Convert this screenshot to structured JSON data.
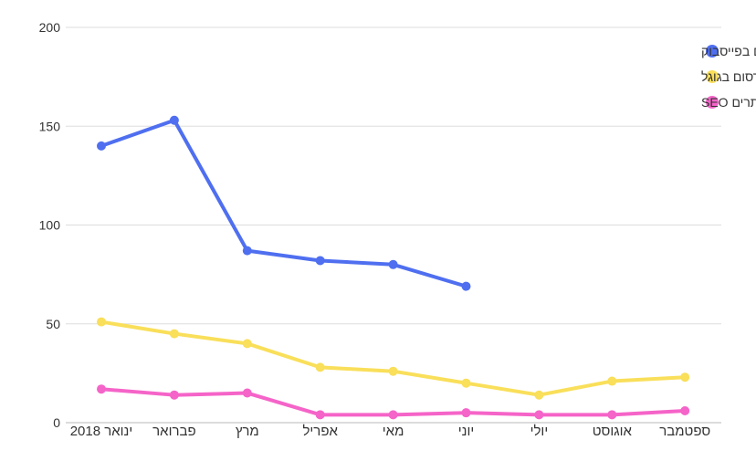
{
  "chart_data": {
    "type": "line",
    "title": "",
    "xlabel": "",
    "ylabel": "",
    "ylim": [
      0,
      200
    ],
    "yticks": [
      0,
      50,
      100,
      150,
      200
    ],
    "categories": [
      "ינואר 2018",
      "פברואר",
      "מרץ",
      "אפריל",
      "מאי",
      "יוני",
      "יולי",
      "אוגוסט",
      "ספטמבר"
    ],
    "series": [
      {
        "name": "פרסום בפייסבוק",
        "color": "#4f6ff0",
        "values": [
          140,
          153,
          87,
          82,
          80,
          69,
          null,
          null,
          null
        ]
      },
      {
        "name": "פרסום בגוגל",
        "color": "#f9df5a",
        "values": [
          51,
          45,
          40,
          28,
          26,
          20,
          14,
          21,
          23
        ]
      },
      {
        "name": "קידום אתרים SEO",
        "color": "#f564c8",
        "values": [
          17,
          14,
          15,
          4,
          4,
          5,
          4,
          4,
          6
        ]
      }
    ],
    "grid": true,
    "legend_position": "top-right"
  }
}
